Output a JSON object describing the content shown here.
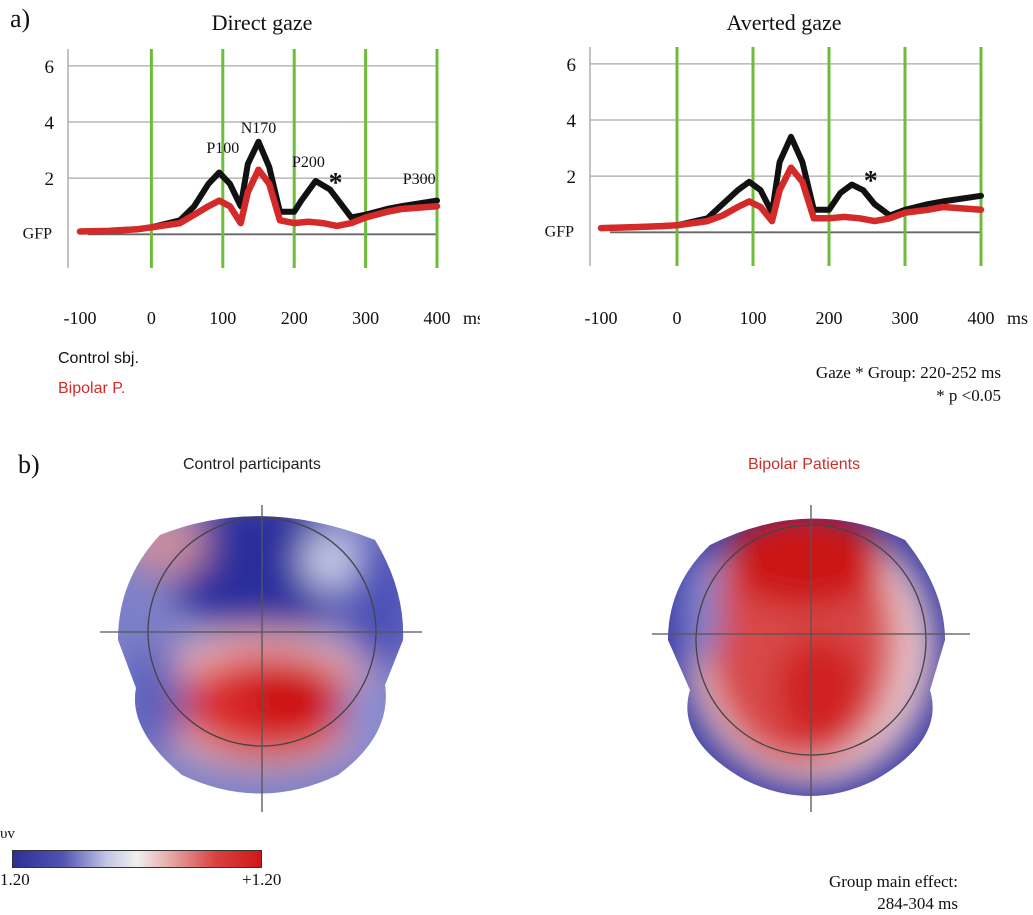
{
  "panel_a_label": "a)",
  "panel_b_label": "b)",
  "chart_data": [
    {
      "type": "line",
      "title": "Direct gaze",
      "ylabel": "GFP",
      "xlabel": "ms",
      "x_ticks": [
        -100,
        0,
        100,
        200,
        300,
        400
      ],
      "y_ticks": [
        2,
        4,
        6
      ],
      "xlim": [
        -100,
        400
      ],
      "ylim": [
        -1.2,
        6.6
      ],
      "vlines": [
        0,
        100,
        200,
        300,
        400
      ],
      "series": [
        {
          "name": "Control sbj.",
          "color": "#111111",
          "x": [
            -100,
            -60,
            -20,
            0,
            40,
            60,
            80,
            95,
            110,
            125,
            135,
            150,
            165,
            180,
            200,
            210,
            230,
            250,
            265,
            280,
            300,
            330,
            350,
            400
          ],
          "y": [
            0.1,
            0.12,
            0.18,
            0.25,
            0.5,
            1.0,
            1.8,
            2.2,
            1.8,
            1.0,
            2.5,
            3.3,
            2.4,
            0.8,
            0.8,
            1.2,
            1.9,
            1.6,
            1.1,
            0.6,
            0.7,
            0.9,
            1.0,
            1.2
          ]
        },
        {
          "name": "Bipolar P.",
          "color": "#d42a2a",
          "x": [
            -100,
            -60,
            -20,
            0,
            40,
            60,
            80,
            95,
            110,
            125,
            135,
            150,
            165,
            180,
            200,
            220,
            240,
            260,
            280,
            300,
            330,
            350,
            400
          ],
          "y": [
            0.1,
            0.12,
            0.18,
            0.25,
            0.4,
            0.7,
            1.0,
            1.2,
            1.0,
            0.4,
            1.5,
            2.3,
            1.8,
            0.5,
            0.4,
            0.45,
            0.4,
            0.3,
            0.4,
            0.6,
            0.8,
            0.9,
            1.0
          ]
        }
      ],
      "annotations": [
        {
          "text": "P100",
          "x": 100,
          "y": 2.9
        },
        {
          "text": "N170",
          "x": 150,
          "y": 3.6
        },
        {
          "text": "P200",
          "x": 220,
          "y": 2.4
        },
        {
          "text": "P300",
          "x": 375,
          "y": 1.8
        },
        {
          "text": "*",
          "x": 258,
          "y": 1.5
        }
      ]
    },
    {
      "type": "line",
      "title": "Averted gaze",
      "ylabel": "GFP",
      "xlabel": "ms",
      "x_ticks": [
        -100,
        0,
        100,
        200,
        300,
        400
      ],
      "y_ticks": [
        2,
        4,
        6
      ],
      "xlim": [
        -100,
        400
      ],
      "ylim": [
        -1.2,
        6.6
      ],
      "vlines": [
        0,
        100,
        200,
        300,
        400
      ],
      "series": [
        {
          "name": "Control sbj.",
          "color": "#111111",
          "x": [
            -100,
            -60,
            -20,
            0,
            40,
            60,
            80,
            95,
            110,
            125,
            135,
            150,
            165,
            180,
            200,
            215,
            230,
            245,
            260,
            280,
            300,
            330,
            350,
            400
          ],
          "y": [
            0.15,
            0.18,
            0.22,
            0.25,
            0.5,
            1.0,
            1.5,
            1.8,
            1.5,
            0.7,
            2.5,
            3.4,
            2.5,
            0.8,
            0.8,
            1.4,
            1.7,
            1.5,
            1.0,
            0.6,
            0.8,
            1.0,
            1.1,
            1.3
          ]
        },
        {
          "name": "Bipolar P.",
          "color": "#d42a2a",
          "x": [
            -100,
            -60,
            -20,
            0,
            40,
            60,
            80,
            95,
            110,
            125,
            135,
            150,
            165,
            180,
            200,
            220,
            240,
            260,
            280,
            300,
            330,
            350,
            400
          ],
          "y": [
            0.15,
            0.18,
            0.22,
            0.25,
            0.4,
            0.6,
            0.9,
            1.1,
            0.9,
            0.4,
            1.5,
            2.3,
            1.8,
            0.5,
            0.5,
            0.55,
            0.5,
            0.4,
            0.5,
            0.7,
            0.8,
            0.9,
            0.8
          ]
        }
      ],
      "annotations": [
        {
          "text": "*",
          "x": 255,
          "y": 1.5
        }
      ]
    }
  ],
  "legend": {
    "control": "Control sbj.",
    "control_color": "#111111",
    "bipolar": "Bipolar P.",
    "bipolar_color": "#d42a2a"
  },
  "stats_note": {
    "line1": "Gaze * Group: 220-252 ms",
    "line2": "* p <0.05"
  },
  "topomaps": {
    "control_title": "Control participants",
    "bipolar_title": "Bipolar Patients",
    "bipolar_title_color": "#c8302f"
  },
  "colorbar": {
    "unit": "υv",
    "min_label": "1.20",
    "max_label": "+1.20",
    "low_color": "#2e2f96",
    "high_color": "#d01818"
  },
  "group_effect": {
    "line1": "Group main effect:",
    "line2": "284-304 ms"
  }
}
